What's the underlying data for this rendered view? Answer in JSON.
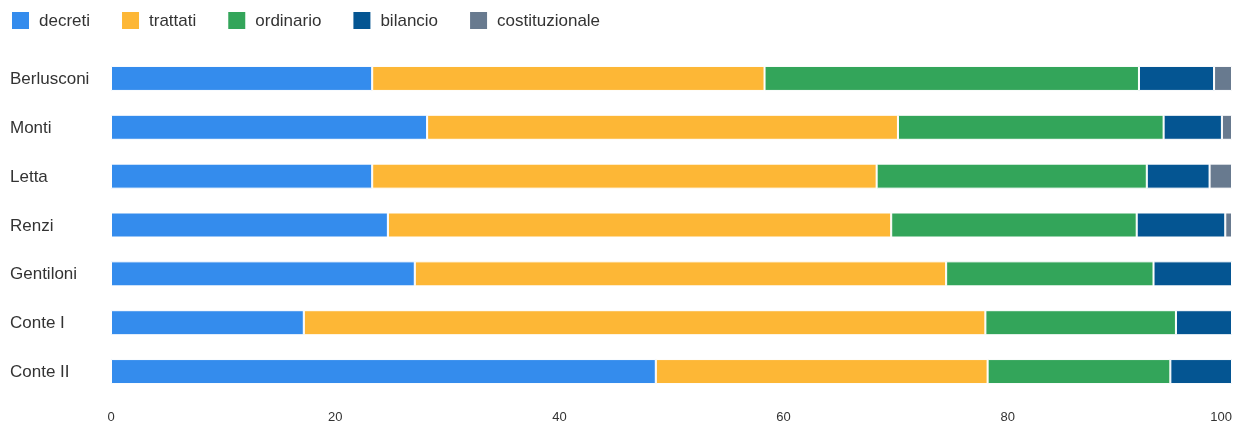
{
  "chart_data": {
    "type": "bar",
    "orientation": "horizontal",
    "stacked": true,
    "categories": [
      "Berlusconi",
      "Monti",
      "Letta",
      "Renzi",
      "Gentiloni",
      "Conte I",
      "Conte II"
    ],
    "series": [
      {
        "name": "decreti",
        "color": "#348ced",
        "values": [
          23.3,
          28.2,
          23.3,
          24.7,
          27.1,
          17.2,
          48.6
        ]
      },
      {
        "name": "trattati",
        "color": "#fdb736",
        "values": [
          35.0,
          42.0,
          45.0,
          44.9,
          47.4,
          60.8,
          29.6
        ]
      },
      {
        "name": "ordinario",
        "color": "#33a55a",
        "values": [
          33.4,
          23.7,
          24.1,
          21.9,
          18.5,
          17.0,
          16.3
        ]
      },
      {
        "name": "bilancio",
        "color": "#045592",
        "values": [
          6.7,
          5.2,
          5.6,
          7.9,
          7.0,
          5.0,
          5.5
        ]
      },
      {
        "name": "costituzionale",
        "color": "#687a8f",
        "values": [
          1.6,
          0.9,
          2.0,
          0.6,
          null,
          null,
          null
        ]
      }
    ],
    "xlim": [
      0,
      100
    ],
    "xticks": [
      0,
      20,
      40,
      60,
      80,
      100
    ],
    "grid": false,
    "legend": "top left"
  }
}
